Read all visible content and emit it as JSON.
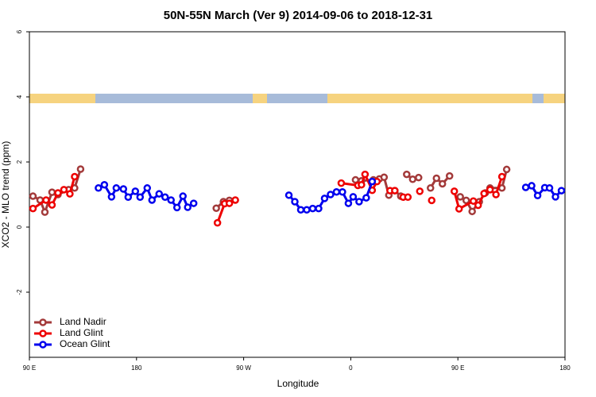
{
  "chart_data": {
    "type": "line",
    "title": "50N-55N March (Ver 9)   2014-09-06 to 2018-12-31",
    "x_label": "Longitude",
    "y_label": "XCO2 - MLO trend (ppm)",
    "xlim": [
      90,
      540
    ],
    "xticks": [
      {
        "value": 90,
        "label": "90 E"
      },
      180,
      {
        "value": 270,
        "label": "90 W"
      },
      {
        "value": 360,
        "label": "0"
      },
      {
        "value": 450,
        "label": "90 E"
      },
      {
        "value": 540,
        "label": "180"
      }
    ],
    "ylim": [
      -4,
      6
    ],
    "yticks": [
      -2,
      0,
      2,
      4,
      6
    ],
    "legend": "bottom-left",
    "series": [
      {
        "name": "Land Nadir",
        "color": "#a33a3a",
        "x": [
          93,
          99,
          103,
          109,
          114,
          123,
          128,
          133,
          null,
          247,
          253,
          258,
          null,
          364,
          369,
          379,
          384,
          388,
          392,
          397,
          402,
          null,
          407,
          412,
          417,
          null,
          427,
          432,
          437,
          443,
          null,
          452,
          457,
          462,
          468,
          473,
          477,
          487,
          491
        ],
        "values": [
          0.95,
          0.83,
          0.46,
          1.07,
          1.0,
          1.15,
          1.2,
          1.78,
          null,
          0.58,
          0.78,
          0.82,
          null,
          1.45,
          1.42,
          1.45,
          1.48,
          1.53,
          0.98,
          1.12,
          0.95,
          null,
          1.62,
          1.47,
          1.52,
          null,
          1.2,
          1.5,
          1.33,
          1.57,
          null,
          0.93,
          0.82,
          0.48,
          0.78,
          1.05,
          1.2,
          1.2,
          1.77
        ]
      },
      {
        "name": "Land Glint",
        "color": "#ee0000",
        "x": [
          93,
          104,
          109,
          114,
          119,
          124,
          128,
          null,
          248,
          254,
          258,
          263,
          null,
          352,
          366,
          369,
          372,
          378,
          382,
          null,
          393,
          397,
          null,
          404,
          408,
          null,
          418,
          null,
          428,
          null,
          447,
          451,
          463,
          467,
          472,
          477,
          482,
          487
        ],
        "values": [
          0.57,
          0.83,
          0.68,
          1.05,
          1.15,
          1.02,
          1.55,
          null,
          0.13,
          0.72,
          0.73,
          0.83,
          null,
          1.35,
          1.28,
          1.3,
          1.62,
          1.13,
          1.4,
          null,
          1.12,
          1.12,
          null,
          0.92,
          0.92,
          null,
          1.1,
          null,
          0.82,
          null,
          1.1,
          0.56,
          0.8,
          0.67,
          1.03,
          1.15,
          1.0,
          1.55
        ]
      },
      {
        "name": "Ocean Glint",
        "color": "#0000ee",
        "x": [
          148,
          153,
          159,
          163,
          169,
          173,
          179,
          183,
          189,
          193,
          199,
          204,
          209,
          214,
          219,
          223,
          228,
          null,
          308,
          313,
          318,
          323,
          328,
          333,
          338,
          343,
          348,
          353,
          358,
          362,
          367,
          373,
          378,
          null,
          507,
          512,
          517,
          523,
          527,
          532,
          537
        ],
        "values": [
          1.2,
          1.3,
          0.93,
          1.2,
          1.17,
          0.92,
          1.1,
          0.92,
          1.2,
          0.83,
          1.02,
          0.92,
          0.83,
          0.6,
          0.95,
          0.61,
          0.73,
          null,
          0.98,
          0.78,
          0.53,
          0.53,
          0.57,
          0.57,
          0.88,
          1.0,
          1.08,
          1.08,
          0.73,
          0.93,
          0.78,
          0.9,
          1.4,
          null,
          1.22,
          1.27,
          0.97,
          1.21,
          1.2,
          0.93,
          1.12
        ]
      }
    ]
  }
}
